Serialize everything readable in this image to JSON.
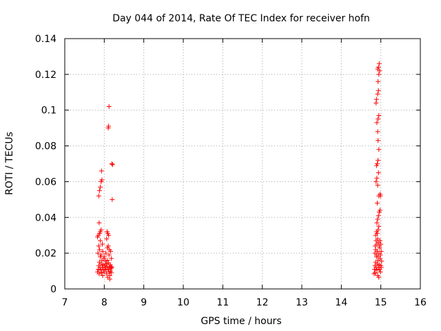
{
  "chart_data": {
    "type": "scatter",
    "title": "Day 044 of 2014, Rate Of TEC Index for receiver hofn",
    "xlabel": "GPS time / hours",
    "ylabel": "ROTI / TECUs",
    "xlim": [
      7,
      16
    ],
    "ylim": [
      0,
      0.14
    ],
    "x_ticks": [
      "7",
      "8",
      "9",
      "10",
      "11",
      "12",
      "13",
      "14",
      "15",
      "16"
    ],
    "y_ticks": [
      "0",
      "0.02",
      "0.04",
      "0.06",
      "0.08",
      "0.1",
      "0.12",
      "0.14"
    ],
    "grid": true,
    "marker": "plus",
    "color": "#ff0000",
    "series": [
      {
        "name": "ROTI",
        "points": [
          [
            7.83,
            0.0095
          ],
          [
            7.85,
            0.011
          ],
          [
            7.86,
            0.013
          ],
          [
            7.87,
            0.0085
          ],
          [
            7.88,
            0.015
          ],
          [
            7.89,
            0.012
          ],
          [
            7.9,
            0.018
          ],
          [
            7.91,
            0.0105
          ],
          [
            7.92,
            0.014
          ],
          [
            7.93,
            0.009
          ],
          [
            7.94,
            0.016
          ],
          [
            7.95,
            0.012
          ],
          [
            7.96,
            0.0075
          ],
          [
            7.97,
            0.0135
          ],
          [
            7.98,
            0.011
          ],
          [
            7.99,
            0.017
          ],
          [
            8.0,
            0.0095
          ],
          [
            8.01,
            0.013
          ],
          [
            8.02,
            0.012
          ],
          [
            8.03,
            0.0155
          ],
          [
            8.04,
            0.0105
          ],
          [
            8.05,
            0.014
          ],
          [
            8.06,
            0.0085
          ],
          [
            8.07,
            0.0125
          ],
          [
            8.08,
            0.016
          ],
          [
            8.09,
            0.0065
          ],
          [
            8.1,
            0.011
          ],
          [
            8.11,
            0.0145
          ],
          [
            8.12,
            0.0095
          ],
          [
            8.13,
            0.012
          ],
          [
            8.14,
            0.0075
          ],
          [
            8.15,
            0.0135
          ],
          [
            8.16,
            0.01
          ],
          [
            8.17,
            0.0115
          ],
          [
            8.18,
            0.009
          ],
          [
            8.19,
            0.012
          ],
          [
            7.84,
            0.02
          ],
          [
            7.88,
            0.022
          ],
          [
            7.92,
            0.019
          ],
          [
            7.96,
            0.021
          ],
          [
            8.0,
            0.018
          ],
          [
            8.04,
            0.02
          ],
          [
            8.08,
            0.023
          ],
          [
            8.12,
            0.019
          ],
          [
            8.16,
            0.021
          ],
          [
            8.18,
            0.017
          ],
          [
            7.86,
            0.024
          ],
          [
            7.9,
            0.027
          ],
          [
            7.95,
            0.025
          ],
          [
            8.06,
            0.028
          ],
          [
            8.1,
            0.024
          ],
          [
            8.13,
            0.022
          ],
          [
            7.83,
            0.029
          ],
          [
            7.85,
            0.03
          ],
          [
            7.88,
            0.031
          ],
          [
            7.9,
            0.032
          ],
          [
            7.92,
            0.033
          ],
          [
            8.07,
            0.032
          ],
          [
            8.09,
            0.031
          ],
          [
            8.11,
            0.03
          ],
          [
            7.87,
            0.037
          ],
          [
            7.86,
            0.052
          ],
          [
            7.88,
            0.055
          ],
          [
            7.9,
            0.057
          ],
          [
            7.92,
            0.06
          ],
          [
            7.94,
            0.061
          ],
          [
            7.93,
            0.066
          ],
          [
            8.1,
            0.09
          ],
          [
            8.11,
            0.091
          ],
          [
            8.12,
            0.102
          ],
          [
            8.19,
            0.07
          ],
          [
            8.21,
            0.0695
          ],
          [
            8.2,
            0.05
          ],
          [
            8.17,
            0.0125
          ],
          [
            8.14,
            0.0055
          ],
          [
            14.83,
            0.0085
          ],
          [
            14.84,
            0.011
          ],
          [
            14.85,
            0.013
          ],
          [
            14.86,
            0.009
          ],
          [
            14.87,
            0.015
          ],
          [
            14.88,
            0.012
          ],
          [
            14.89,
            0.018
          ],
          [
            14.9,
            0.0105
          ],
          [
            14.91,
            0.014
          ],
          [
            14.92,
            0.0075
          ],
          [
            14.93,
            0.016
          ],
          [
            14.94,
            0.012
          ],
          [
            14.95,
            0.0065
          ],
          [
            14.96,
            0.0135
          ],
          [
            14.97,
            0.011
          ],
          [
            14.98,
            0.017
          ],
          [
            14.99,
            0.0095
          ],
          [
            15.0,
            0.013
          ],
          [
            15.01,
            0.012
          ],
          [
            15.02,
            0.0155
          ],
          [
            14.85,
            0.02
          ],
          [
            14.87,
            0.022
          ],
          [
            14.89,
            0.019
          ],
          [
            14.91,
            0.021
          ],
          [
            14.93,
            0.018
          ],
          [
            14.95,
            0.02
          ],
          [
            14.97,
            0.023
          ],
          [
            14.99,
            0.019
          ],
          [
            15.01,
            0.021
          ],
          [
            14.86,
            0.024
          ],
          [
            14.88,
            0.027
          ],
          [
            14.9,
            0.025
          ],
          [
            14.92,
            0.028
          ],
          [
            14.94,
            0.026
          ],
          [
            14.96,
            0.024
          ],
          [
            14.98,
            0.027
          ],
          [
            15.0,
            0.025
          ],
          [
            14.87,
            0.03
          ],
          [
            14.89,
            0.032
          ],
          [
            14.91,
            0.031
          ],
          [
            14.93,
            0.033
          ],
          [
            14.95,
            0.035
          ],
          [
            14.9,
            0.037
          ],
          [
            14.92,
            0.039
          ],
          [
            14.94,
            0.041
          ],
          [
            14.96,
            0.043
          ],
          [
            14.98,
            0.044
          ],
          [
            14.91,
            0.048
          ],
          [
            14.95,
            0.052
          ],
          [
            14.98,
            0.053
          ],
          [
            14.99,
            0.052
          ],
          [
            14.88,
            0.06
          ],
          [
            14.9,
            0.062
          ],
          [
            14.92,
            0.058
          ],
          [
            14.94,
            0.065
          ],
          [
            14.91,
            0.07
          ],
          [
            14.93,
            0.072
          ],
          [
            14.89,
            0.069
          ],
          [
            14.95,
            0.078
          ],
          [
            14.93,
            0.083
          ],
          [
            14.92,
            0.088
          ],
          [
            14.9,
            0.093
          ],
          [
            14.93,
            0.095
          ],
          [
            14.95,
            0.097
          ],
          [
            14.88,
            0.104
          ],
          [
            14.89,
            0.106
          ],
          [
            14.92,
            0.109
          ],
          [
            14.94,
            0.111
          ],
          [
            14.93,
            0.116
          ],
          [
            14.95,
            0.12
          ],
          [
            14.92,
            0.123
          ],
          [
            14.94,
            0.124
          ],
          [
            14.96,
            0.126
          ],
          [
            14.97,
            0.122
          ]
        ]
      }
    ]
  }
}
